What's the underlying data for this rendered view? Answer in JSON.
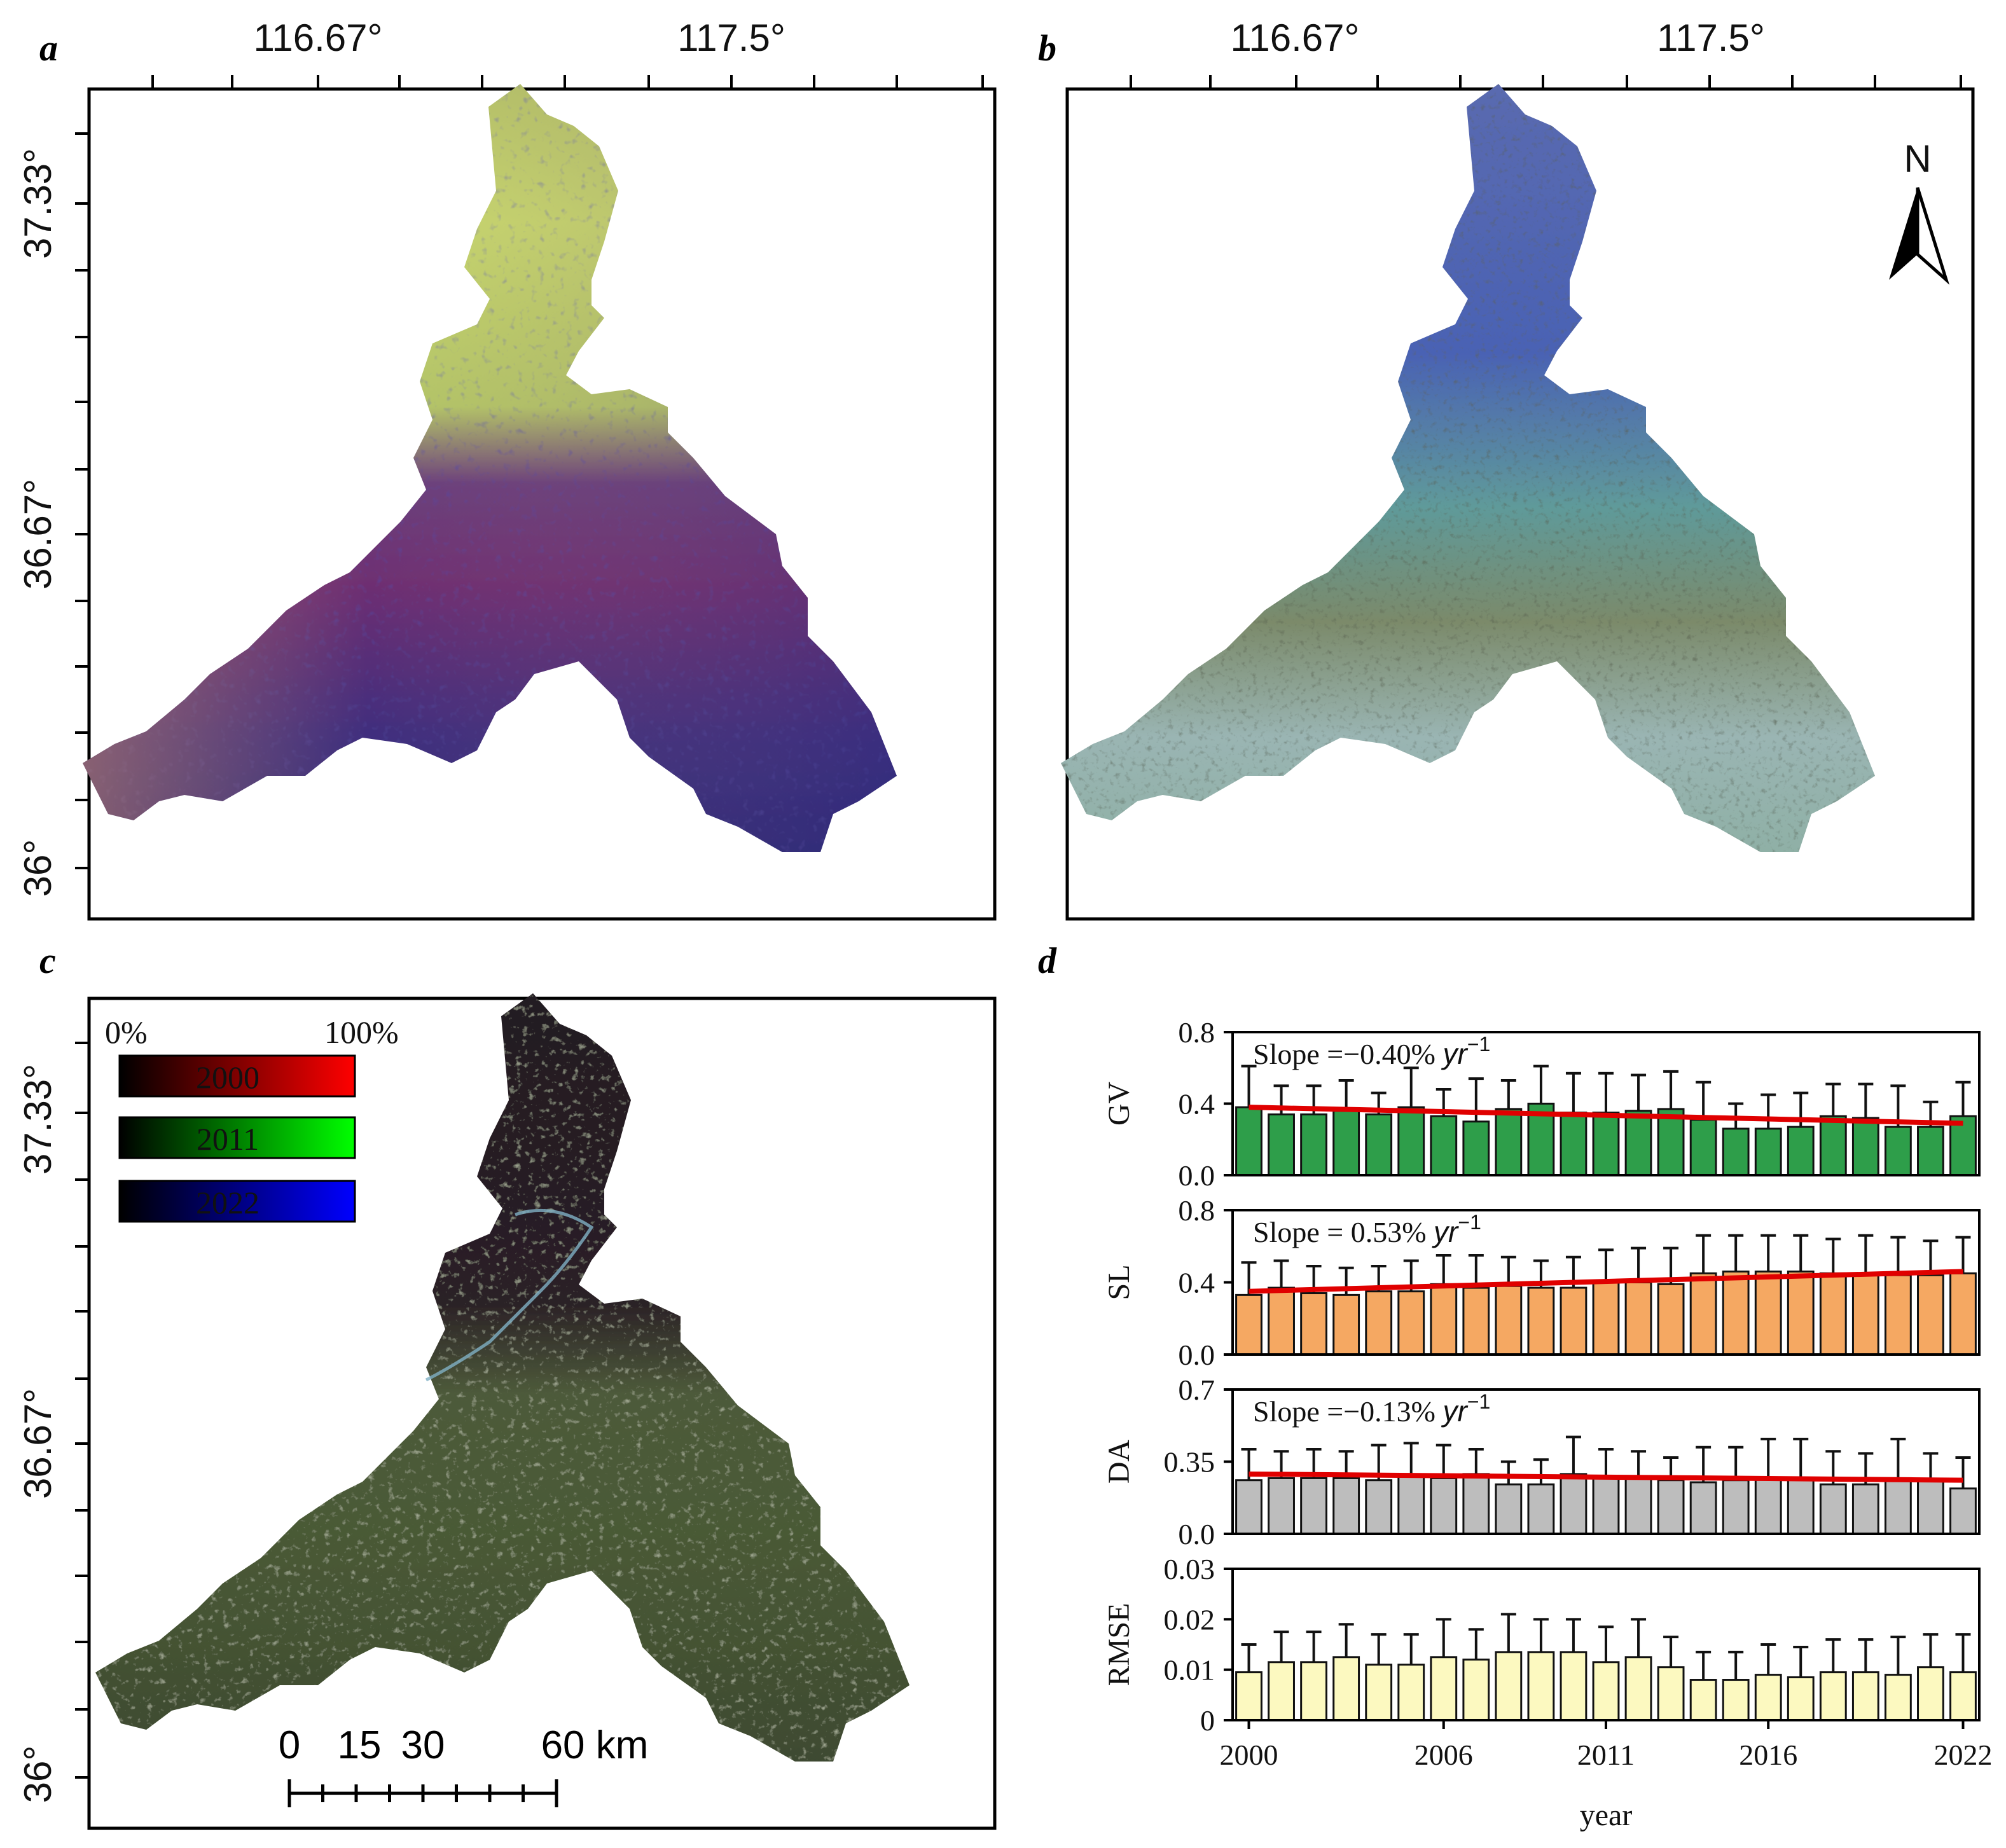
{
  "panels": {
    "a": {
      "label": "a"
    },
    "b": {
      "label": "b"
    },
    "c": {
      "label": "c"
    },
    "d": {
      "label": "d"
    }
  },
  "map_ticks": {
    "lon": [
      "116.67°",
      "117.5°"
    ],
    "lat": [
      "37.33°",
      "36.67°",
      "36°"
    ]
  },
  "north_arrow": {
    "label": "N"
  },
  "legend_c": {
    "min_label": "0%",
    "max_label": "100%",
    "years": [
      {
        "year": "2000",
        "color": "#ff0000"
      },
      {
        "year": "2011",
        "color": "#00ff00"
      },
      {
        "year": "2022",
        "color": "#0000ff"
      }
    ]
  },
  "scalebar": {
    "labels": [
      "0",
      "15",
      "30",
      "60 km"
    ]
  },
  "colors": {
    "gv": "#2e9e4a",
    "sl": "#f5a862",
    "da": "#bdbdbd",
    "rmse": "#fcf9c0",
    "trend": "#e00000"
  },
  "chart_data": [
    {
      "type": "bar",
      "ylabel": "GV",
      "ylim": [
        0,
        0.8
      ],
      "yticks": [
        "0.0",
        "0.4",
        "0.8"
      ],
      "slope_label": "Slope =−0.40%",
      "unit_label": "yr",
      "unit_exp": "−1",
      "categories": [
        2000,
        2001,
        2002,
        2003,
        2004,
        2005,
        2006,
        2007,
        2008,
        2009,
        2010,
        2011,
        2012,
        2013,
        2014,
        2015,
        2016,
        2017,
        2018,
        2019,
        2020,
        2021,
        2022
      ],
      "values": [
        0.38,
        0.34,
        0.34,
        0.36,
        0.34,
        0.38,
        0.33,
        0.3,
        0.37,
        0.4,
        0.35,
        0.35,
        0.36,
        0.37,
        0.31,
        0.26,
        0.26,
        0.27,
        0.33,
        0.32,
        0.27,
        0.27,
        0.33
      ],
      "errors": [
        0.23,
        0.16,
        0.16,
        0.17,
        0.12,
        0.22,
        0.15,
        0.24,
        0.16,
        0.21,
        0.22,
        0.22,
        0.2,
        0.21,
        0.21,
        0.14,
        0.19,
        0.19,
        0.18,
        0.19,
        0.23,
        0.14,
        0.19
      ],
      "trend": [
        0.38,
        0.29
      ]
    },
    {
      "type": "bar",
      "ylabel": "SL",
      "ylim": [
        0,
        0.8
      ],
      "yticks": [
        "0.0",
        "0.4",
        "0.8"
      ],
      "slope_label": "Slope = 0.53%",
      "unit_label": "yr",
      "unit_exp": "−1",
      "categories": [
        2000,
        2001,
        2002,
        2003,
        2004,
        2005,
        2006,
        2007,
        2008,
        2009,
        2010,
        2011,
        2012,
        2013,
        2014,
        2015,
        2016,
        2017,
        2018,
        2019,
        2020,
        2021,
        2022
      ],
      "values": [
        0.33,
        0.37,
        0.34,
        0.33,
        0.35,
        0.35,
        0.39,
        0.37,
        0.38,
        0.37,
        0.37,
        0.4,
        0.4,
        0.39,
        0.45,
        0.46,
        0.46,
        0.46,
        0.45,
        0.44,
        0.44,
        0.44,
        0.45
      ],
      "errors": [
        0.18,
        0.15,
        0.15,
        0.15,
        0.14,
        0.17,
        0.16,
        0.18,
        0.16,
        0.15,
        0.17,
        0.18,
        0.19,
        0.2,
        0.21,
        0.2,
        0.2,
        0.2,
        0.19,
        0.22,
        0.21,
        0.19,
        0.2
      ],
      "trend": [
        0.35,
        0.46
      ]
    },
    {
      "type": "bar",
      "ylabel": "DA",
      "ylim": [
        0,
        0.7
      ],
      "yticks": [
        "0.0",
        "0.35",
        "0.7"
      ],
      "slope_label": "Slope =−0.13%",
      "unit_label": "yr",
      "unit_exp": "−1",
      "categories": [
        2000,
        2001,
        2002,
        2003,
        2004,
        2005,
        2006,
        2007,
        2008,
        2009,
        2010,
        2011,
        2012,
        2013,
        2014,
        2015,
        2016,
        2017,
        2018,
        2019,
        2020,
        2021,
        2022
      ],
      "values": [
        0.26,
        0.27,
        0.27,
        0.27,
        0.26,
        0.28,
        0.27,
        0.29,
        0.24,
        0.24,
        0.29,
        0.27,
        0.27,
        0.26,
        0.25,
        0.26,
        0.27,
        0.27,
        0.24,
        0.24,
        0.27,
        0.26,
        0.22
      ],
      "errors": [
        0.15,
        0.13,
        0.14,
        0.13,
        0.17,
        0.16,
        0.16,
        0.12,
        0.11,
        0.12,
        0.18,
        0.14,
        0.13,
        0.11,
        0.17,
        0.16,
        0.19,
        0.19,
        0.16,
        0.15,
        0.19,
        0.13,
        0.15
      ],
      "trend": [
        0.29,
        0.26
      ]
    },
    {
      "type": "bar",
      "ylabel": "RMSE",
      "ylim": [
        0,
        0.03
      ],
      "yticks": [
        "0",
        "0.01",
        "0.02",
        "0.03"
      ],
      "xlabel": "year",
      "xticks": [
        "2000",
        "2006",
        "2011",
        "2016",
        "2022"
      ],
      "categories": [
        2000,
        2001,
        2002,
        2003,
        2004,
        2005,
        2006,
        2007,
        2008,
        2009,
        2010,
        2011,
        2012,
        2013,
        2014,
        2015,
        2016,
        2017,
        2018,
        2019,
        2020,
        2021,
        2022
      ],
      "values": [
        0.0095,
        0.0115,
        0.0115,
        0.0125,
        0.011,
        0.011,
        0.0125,
        0.012,
        0.0135,
        0.0135,
        0.0135,
        0.0115,
        0.0125,
        0.0105,
        0.008,
        0.008,
        0.009,
        0.0085,
        0.0095,
        0.0095,
        0.009,
        0.0105,
        0.0095
      ],
      "errors": [
        0.0055,
        0.006,
        0.006,
        0.0065,
        0.006,
        0.006,
        0.0075,
        0.006,
        0.0075,
        0.0065,
        0.0065,
        0.007,
        0.0075,
        0.006,
        0.0055,
        0.0055,
        0.006,
        0.006,
        0.0065,
        0.0065,
        0.0075,
        0.0065,
        0.0075
      ]
    }
  ]
}
